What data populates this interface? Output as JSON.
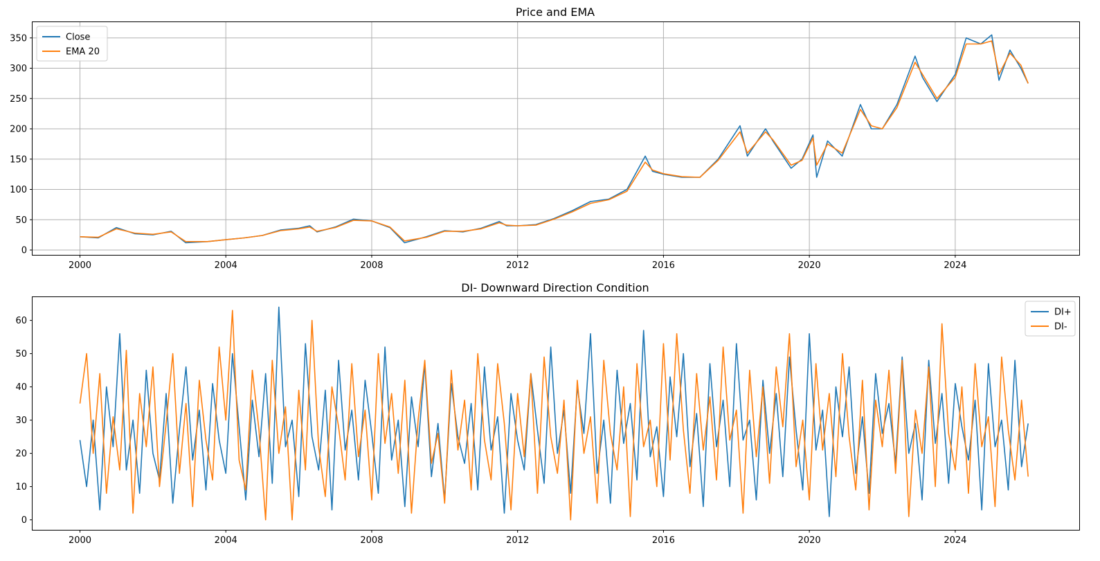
{
  "chart_data": [
    {
      "type": "line",
      "title": "Price and EMA",
      "xlabel": "",
      "ylabel": "",
      "grid": true,
      "legend_position": "upper-left",
      "xlim": [
        1998.7,
        2027.4
      ],
      "ylim": [
        -8,
        376
      ],
      "x_ticks": [
        2000,
        2004,
        2008,
        2012,
        2016,
        2020,
        2024
      ],
      "y_ticks": [
        0,
        50,
        100,
        150,
        200,
        250,
        300,
        350
      ],
      "series": [
        {
          "name": "Close",
          "color": "#1f77b4",
          "x": [
            2000.0,
            2000.5,
            2001.0,
            2001.5,
            2002.0,
            2002.5,
            2002.9,
            2003.5,
            2004.0,
            2004.5,
            2005.0,
            2005.5,
            2006.0,
            2006.3,
            2006.5,
            2007.0,
            2007.5,
            2008.0,
            2008.5,
            2008.9,
            2009.5,
            2010.0,
            2010.5,
            2011.0,
            2011.5,
            2011.7,
            2012.0,
            2012.5,
            2013.0,
            2013.5,
            2014.0,
            2014.5,
            2015.0,
            2015.5,
            2015.7,
            2016.0,
            2016.5,
            2017.0,
            2017.5,
            2018.1,
            2018.3,
            2018.8,
            2019.0,
            2019.5,
            2019.8,
            2020.1,
            2020.2,
            2020.5,
            2020.9,
            2021.4,
            2021.7,
            2022.0,
            2022.4,
            2022.9,
            2023.1,
            2023.5,
            2024.0,
            2024.3,
            2024.7,
            2025.0,
            2025.2,
            2025.5,
            2025.8,
            2026.0
          ],
          "y": [
            22,
            20,
            37,
            27,
            25,
            31,
            12,
            14,
            17,
            20,
            24,
            33,
            36,
            40,
            30,
            38,
            51,
            48,
            37,
            12,
            22,
            32,
            30,
            36,
            47,
            40,
            40,
            42,
            52,
            65,
            80,
            84,
            100,
            155,
            130,
            125,
            120,
            120,
            150,
            205,
            155,
            200,
            180,
            135,
            150,
            190,
            120,
            180,
            155,
            240,
            200,
            200,
            240,
            320,
            285,
            245,
            290,
            350,
            340,
            355,
            280,
            330,
            300,
            275
          ]
        },
        {
          "name": "EMA 20",
          "color": "#ff7f0e",
          "x": [
            2000.0,
            2000.5,
            2001.0,
            2001.5,
            2002.0,
            2002.5,
            2002.9,
            2003.5,
            2004.0,
            2004.5,
            2005.0,
            2005.5,
            2006.0,
            2006.3,
            2006.5,
            2007.0,
            2007.5,
            2008.0,
            2008.5,
            2008.9,
            2009.5,
            2010.0,
            2010.5,
            2011.0,
            2011.5,
            2011.7,
            2012.0,
            2012.5,
            2013.0,
            2013.5,
            2014.0,
            2014.5,
            2015.0,
            2015.5,
            2015.7,
            2016.0,
            2016.5,
            2017.0,
            2017.5,
            2018.1,
            2018.3,
            2018.8,
            2019.0,
            2019.5,
            2019.8,
            2020.1,
            2020.2,
            2020.5,
            2020.9,
            2021.4,
            2021.7,
            2022.0,
            2022.4,
            2022.9,
            2023.1,
            2023.5,
            2024.0,
            2024.3,
            2024.7,
            2025.0,
            2025.2,
            2025.5,
            2025.8,
            2026.0
          ],
          "y": [
            22,
            21,
            35,
            28,
            26,
            30,
            14,
            14,
            17,
            20,
            24,
            32,
            35,
            38,
            31,
            37,
            49,
            48,
            38,
            15,
            21,
            31,
            31,
            35,
            45,
            41,
            40,
            41,
            51,
            63,
            77,
            83,
            97,
            145,
            132,
            126,
            121,
            120,
            148,
            195,
            160,
            195,
            182,
            140,
            148,
            185,
            140,
            175,
            160,
            232,
            205,
            200,
            235,
            310,
            290,
            250,
            285,
            340,
            340,
            345,
            290,
            325,
            305,
            275
          ]
        }
      ]
    },
    {
      "type": "line",
      "title": "DI- Downward Direction Condition",
      "xlabel": "",
      "ylabel": "",
      "grid": false,
      "legend_position": "upper-right",
      "xlim": [
        1998.7,
        2027.4
      ],
      "ylim": [
        -3,
        67
      ],
      "x_ticks": [
        2000,
        2004,
        2008,
        2012,
        2016,
        2020,
        2024
      ],
      "y_ticks": [
        0,
        10,
        20,
        30,
        40,
        50,
        60
      ],
      "series": [
        {
          "name": "DI+",
          "color": "#1f77b4",
          "x_start": 2000.0,
          "x_end": 2026.0,
          "y": [
            24,
            10,
            30,
            3,
            40,
            22,
            56,
            15,
            30,
            8,
            45,
            20,
            12,
            38,
            5,
            27,
            46,
            18,
            33,
            9,
            41,
            24,
            14,
            50,
            28,
            6,
            36,
            19,
            44,
            11,
            64,
            22,
            30,
            7,
            53,
            25,
            15,
            39,
            3,
            48,
            21,
            33,
            12,
            42,
            26,
            8,
            52,
            18,
            30,
            4,
            37,
            22,
            47,
            13,
            29,
            6,
            41,
            25,
            17,
            35,
            9,
            46,
            21,
            31,
            2,
            38,
            24,
            15,
            44,
            27,
            11,
            52,
            20,
            33,
            8,
            40,
            26,
            56,
            14,
            30,
            5,
            45,
            23,
            35,
            12,
            57,
            19,
            28,
            7,
            43,
            25,
            50,
            16,
            32,
            4,
            47,
            22,
            36,
            10,
            53,
            24,
            30,
            6,
            42,
            20,
            38,
            13,
            49,
            27,
            9,
            56,
            21,
            33,
            1,
            40,
            25,
            46,
            14,
            31,
            8,
            44,
            26,
            35,
            17,
            49,
            20,
            29,
            6,
            48,
            23,
            38,
            11,
            41,
            28,
            18,
            36,
            3,
            47,
            22,
            30,
            9,
            48,
            16,
            29
          ]
        },
        {
          "name": "DI-",
          "color": "#ff7f0e",
          "x_start": 2000.0,
          "x_end": 2026.0,
          "y": [
            35,
            50,
            20,
            44,
            8,
            31,
            15,
            51,
            2,
            38,
            22,
            46,
            10,
            29,
            50,
            14,
            35,
            4,
            42,
            24,
            12,
            52,
            30,
            63,
            18,
            9,
            45,
            27,
            0,
            48,
            20,
            34,
            0,
            39,
            15,
            60,
            22,
            7,
            40,
            28,
            12,
            47,
            19,
            33,
            6,
            50,
            23,
            38,
            14,
            42,
            2,
            30,
            48,
            17,
            26,
            5,
            45,
            21,
            36,
            9,
            50,
            24,
            12,
            47,
            29,
            3,
            38,
            19,
            44,
            8,
            49,
            25,
            14,
            36,
            0,
            42,
            20,
            31,
            5,
            48,
            26,
            15,
            40,
            1,
            47,
            22,
            30,
            10,
            53,
            18,
            56,
            27,
            8,
            44,
            21,
            37,
            12,
            52,
            24,
            33,
            2,
            45,
            19,
            40,
            11,
            46,
            28,
            56,
            16,
            30,
            6,
            47,
            21,
            38,
            13,
            50,
            25,
            9,
            42,
            3,
            36,
            22,
            45,
            14,
            48,
            1,
            33,
            20,
            46,
            10,
            59,
            26,
            15,
            40,
            8,
            47,
            22,
            31,
            4,
            49,
            27,
            12,
            36,
            13
          ]
        }
      ]
    }
  ]
}
